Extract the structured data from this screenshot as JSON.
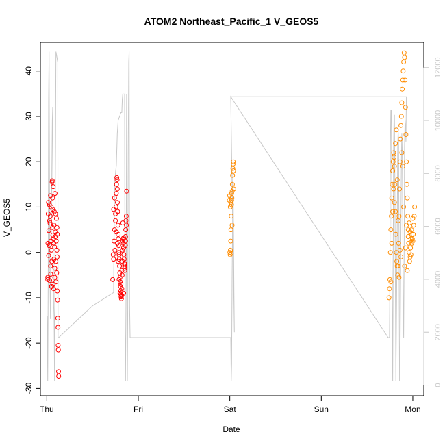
{
  "chart_data": {
    "type": "scatter",
    "title": "ATOM2 Northeast_Pacific_1 V_GEOS5",
    "xlabel": "Date",
    "ylabel": "V_GEOS5",
    "x_ticks": [
      "Thu",
      "Fri",
      "Sat",
      "Sun",
      "Mon"
    ],
    "x_range_days": [
      0,
      4
    ],
    "ylim": [
      -30,
      45
    ],
    "y_ticks": [
      -30,
      -20,
      -10,
      0,
      10,
      20,
      30,
      40
    ],
    "y2_ticks": [
      0,
      2000,
      4000,
      6000,
      8000,
      10000,
      12000
    ],
    "y2lim": [
      0,
      12600
    ],
    "grid": false,
    "colors": {
      "series_red": "#ff0000",
      "series_orange": "#ff8c00",
      "altitude_line": "#c8c8c8",
      "axis": "#000000"
    },
    "series": [
      {
        "color": "red",
        "points": [
          [
            0.01,
            -6
          ],
          [
            0.01,
            -5.5
          ],
          [
            0.012,
            2
          ],
          [
            0.015,
            8.5
          ],
          [
            0.018,
            11
          ],
          [
            0.02,
            -0.7
          ],
          [
            0.022,
            4.8
          ],
          [
            0.025,
            1.5
          ],
          [
            0.028,
            10.5
          ],
          [
            0.03,
            7
          ],
          [
            0.032,
            -6.2
          ],
          [
            0.035,
            6.5
          ],
          [
            0.038,
            8
          ],
          [
            0.04,
            12.5
          ],
          [
            0.042,
            -4.8
          ],
          [
            0.045,
            2.5
          ],
          [
            0.048,
            10
          ],
          [
            0.05,
            0.5
          ],
          [
            0.052,
            -7.5
          ],
          [
            0.055,
            -2
          ],
          [
            0.058,
            15.5
          ],
          [
            0.06,
            15.8
          ],
          [
            0.062,
            5.5
          ],
          [
            0.065,
            9.5
          ],
          [
            0.068,
            -7
          ],
          [
            0.07,
            14.5
          ],
          [
            0.072,
            3
          ],
          [
            0.075,
            -8
          ],
          [
            0.078,
            -1.5
          ],
          [
            0.08,
            6
          ],
          [
            0.082,
            9
          ],
          [
            0.085,
            1.2
          ],
          [
            0.088,
            -3.5
          ],
          [
            0.09,
            13
          ],
          [
            0.092,
            3.5
          ],
          [
            0.095,
            8.5
          ],
          [
            0.1,
            -6.5
          ],
          [
            0.102,
            2.5
          ],
          [
            0.105,
            7.5
          ],
          [
            0.108,
            -4.5
          ],
          [
            0.11,
            0.5
          ],
          [
            0.113,
            -1
          ],
          [
            0.115,
            -8.5
          ],
          [
            0.118,
            -10.5
          ],
          [
            0.12,
            -14.5
          ],
          [
            0.122,
            -16.5
          ],
          [
            0.124,
            -20.5
          ],
          [
            0.126,
            -21.5
          ],
          [
            0.128,
            -26.3
          ],
          [
            0.13,
            -27.3
          ],
          [
            0.115,
            4
          ],
          [
            0.112,
            5.5
          ],
          [
            0.098,
            -2
          ],
          [
            0.093,
            4.5
          ],
          [
            0.087,
            -5.5
          ],
          [
            0.076,
            2
          ],
          [
            0.066,
            3.8
          ],
          [
            0.063,
            12
          ],
          [
            0.041,
            -3
          ],
          [
            0.033,
            1.8
          ],
          [
            0.72,
            -6
          ],
          [
            0.725,
            -0.5
          ],
          [
            0.73,
            -1.5
          ],
          [
            0.735,
            2.5
          ],
          [
            0.74,
            5
          ],
          [
            0.745,
            0.5
          ],
          [
            0.75,
            8.5
          ],
          [
            0.755,
            10
          ],
          [
            0.76,
            13
          ],
          [
            0.762,
            15
          ],
          [
            0.765,
            16.5
          ],
          [
            0.768,
            16
          ],
          [
            0.77,
            14
          ],
          [
            0.772,
            11
          ],
          [
            0.775,
            9
          ],
          [
            0.778,
            6
          ],
          [
            0.78,
            4
          ],
          [
            0.782,
            3
          ],
          [
            0.785,
            1.5
          ],
          [
            0.788,
            0
          ],
          [
            0.79,
            -0.5
          ],
          [
            0.792,
            -1.5
          ],
          [
            0.795,
            -3
          ],
          [
            0.798,
            -4.5
          ],
          [
            0.8,
            -5.5
          ],
          [
            0.803,
            -6.5
          ],
          [
            0.806,
            -7.5
          ],
          [
            0.808,
            -8.5
          ],
          [
            0.81,
            -9.2
          ],
          [
            0.812,
            -9.8
          ],
          [
            0.815,
            -10.2
          ],
          [
            0.818,
            -9.5
          ],
          [
            0.82,
            -8
          ],
          [
            0.823,
            -5
          ],
          [
            0.825,
            -2
          ],
          [
            0.828,
            0.5
          ],
          [
            0.83,
            2.5
          ],
          [
            0.833,
            3
          ],
          [
            0.835,
            2
          ],
          [
            0.838,
            1
          ],
          [
            0.84,
            3.2
          ],
          [
            0.842,
            -0.5
          ],
          [
            0.845,
            -1.5
          ],
          [
            0.848,
            -2.5
          ],
          [
            0.85,
            -3.5
          ],
          [
            0.852,
            -4
          ],
          [
            0.855,
            -2.5
          ],
          [
            0.858,
            1.5
          ],
          [
            0.86,
            3.5
          ],
          [
            0.862,
            5
          ],
          [
            0.865,
            7
          ],
          [
            0.868,
            8
          ],
          [
            0.87,
            6
          ],
          [
            0.872,
            13.5
          ],
          [
            0.73,
            9.5
          ],
          [
            0.74,
            12
          ],
          [
            0.75,
            7
          ],
          [
            0.76,
            4.5
          ],
          [
            0.77,
            2
          ],
          [
            0.78,
            -2
          ],
          [
            0.79,
            -6
          ],
          [
            0.8,
            -9
          ],
          [
            0.81,
            -7
          ],
          [
            0.82,
            -4
          ],
          [
            0.83,
            6.5
          ],
          [
            0.84,
            -9
          ],
          [
            0.85,
            -3
          ],
          [
            0.86,
            2.5
          ]
        ]
      },
      {
        "color": "orange",
        "points": [
          [
            2.0,
            0
          ],
          [
            2.003,
            -0.5
          ],
          [
            2.006,
            0.5
          ],
          [
            2.01,
            2.5
          ],
          [
            2.012,
            5
          ],
          [
            2.015,
            8
          ],
          [
            2.018,
            10.5
          ],
          [
            2.02,
            11.5
          ],
          [
            2.023,
            12
          ],
          [
            2.026,
            13.5
          ],
          [
            2.028,
            15
          ],
          [
            2.03,
            17
          ],
          [
            2.033,
            18.5
          ],
          [
            2.036,
            19.5
          ],
          [
            2.038,
            20
          ],
          [
            2.04,
            18
          ],
          [
            2.043,
            14
          ],
          [
            2.01,
            11
          ],
          [
            2.02,
            13
          ],
          [
            1.995,
            11.5
          ],
          [
            1.998,
            12.5
          ],
          [
            2.005,
            10
          ],
          [
            2.015,
            -0.2
          ],
          [
            2.025,
            6
          ],
          [
            3.74,
            -10
          ],
          [
            3.745,
            -8
          ],
          [
            3.75,
            -6
          ],
          [
            3.755,
            0
          ],
          [
            3.76,
            5
          ],
          [
            3.765,
            8
          ],
          [
            3.77,
            12
          ],
          [
            3.775,
            15
          ],
          [
            3.78,
            18
          ],
          [
            3.785,
            20
          ],
          [
            3.79,
            22
          ],
          [
            3.795,
            21
          ],
          [
            3.8,
            19
          ],
          [
            3.805,
            15
          ],
          [
            3.81,
            9
          ],
          [
            3.815,
            4
          ],
          [
            3.82,
            0
          ],
          [
            3.825,
            -2
          ],
          [
            3.83,
            -3
          ],
          [
            3.835,
            -5
          ],
          [
            3.84,
            -3
          ],
          [
            3.845,
            2
          ],
          [
            3.85,
            8
          ],
          [
            3.855,
            14
          ],
          [
            3.86,
            20
          ],
          [
            3.865,
            25
          ],
          [
            3.87,
            28
          ],
          [
            3.875,
            30
          ],
          [
            3.88,
            33
          ],
          [
            3.885,
            36
          ],
          [
            3.89,
            38
          ],
          [
            3.895,
            40
          ],
          [
            3.9,
            42
          ],
          [
            3.905,
            44
          ],
          [
            3.91,
            43
          ],
          [
            3.915,
            38
          ],
          [
            3.92,
            32
          ],
          [
            3.925,
            26
          ],
          [
            3.93,
            20
          ],
          [
            3.935,
            15
          ],
          [
            3.94,
            12
          ],
          [
            3.945,
            8
          ],
          [
            3.95,
            5
          ],
          [
            3.955,
            2
          ],
          [
            3.96,
            0
          ],
          [
            3.965,
            -2
          ],
          [
            3.97,
            -1
          ],
          [
            3.975,
            1
          ],
          [
            3.98,
            3
          ],
          [
            3.985,
            5
          ],
          [
            3.99,
            4
          ],
          [
            3.995,
            3
          ],
          [
            4.0,
            2.5
          ],
          [
            4.005,
            4
          ],
          [
            4.01,
            6
          ],
          [
            4.015,
            8
          ],
          [
            4.02,
            10
          ],
          [
            3.76,
            -6.5
          ],
          [
            3.77,
            2
          ],
          [
            3.78,
            9
          ],
          [
            3.79,
            14
          ],
          [
            3.8,
            11
          ],
          [
            3.81,
            24
          ],
          [
            3.82,
            27
          ],
          [
            3.83,
            16
          ],
          [
            3.84,
            7
          ],
          [
            3.85,
            -5.5
          ],
          [
            3.86,
            0.5
          ],
          [
            3.87,
            -1
          ],
          [
            3.88,
            22
          ],
          [
            3.89,
            19
          ],
          [
            3.9,
            10
          ],
          [
            3.91,
            -3
          ],
          [
            3.92,
            1
          ],
          [
            3.93,
            6
          ],
          [
            3.94,
            -4
          ],
          [
            3.95,
            3.5
          ],
          [
            3.96,
            6.5
          ],
          [
            3.97,
            4.5
          ],
          [
            3.98,
            -0.5
          ],
          [
            3.99,
            2
          ],
          [
            4.0,
            7.5
          ]
        ]
      }
    ],
    "altitude_line": [
      [
        0.0,
        2600
      ],
      [
        0.005,
        2600
      ],
      [
        0.01,
        150
      ],
      [
        0.015,
        4000
      ],
      [
        0.02,
        10800
      ],
      [
        0.025,
        12600
      ],
      [
        0.03,
        6500
      ],
      [
        0.035,
        4000
      ],
      [
        0.04,
        2500
      ],
      [
        0.045,
        5000
      ],
      [
        0.05,
        6000
      ],
      [
        0.055,
        8000
      ],
      [
        0.06,
        10000
      ],
      [
        0.065,
        10500
      ],
      [
        0.07,
        5000
      ],
      [
        0.075,
        3000
      ],
      [
        0.08,
        2600
      ],
      [
        0.085,
        150
      ],
      [
        0.09,
        6000
      ],
      [
        0.095,
        9000
      ],
      [
        0.1,
        12600
      ],
      [
        0.105,
        12500
      ],
      [
        0.11,
        12400
      ],
      [
        0.115,
        12300
      ],
      [
        0.12,
        12200
      ],
      [
        0.123,
        1800
      ],
      [
        0.13,
        1800
      ],
      [
        0.5,
        3000
      ],
      [
        0.73,
        3500
      ],
      [
        0.74,
        7500
      ],
      [
        0.75,
        8000
      ],
      [
        0.76,
        8300
      ],
      [
        0.77,
        9500
      ],
      [
        0.78,
        10000
      ],
      [
        0.79,
        10100
      ],
      [
        0.8,
        10200
      ],
      [
        0.81,
        10300
      ],
      [
        0.82,
        10300
      ],
      [
        0.825,
        10800
      ],
      [
        0.83,
        11000
      ],
      [
        0.84,
        11000
      ],
      [
        0.85,
        11000
      ],
      [
        0.855,
        2000
      ],
      [
        0.86,
        150
      ],
      [
        0.865,
        3000
      ],
      [
        0.87,
        8000
      ],
      [
        0.872,
        11000
      ],
      [
        0.875,
        4000
      ],
      [
        0.88,
        150
      ],
      [
        0.885,
        3000
      ],
      [
        0.89,
        9000
      ],
      [
        0.895,
        12200
      ],
      [
        0.9,
        12600
      ],
      [
        0.905,
        3000
      ],
      [
        0.91,
        1800
      ],
      [
        1.0,
        1800
      ],
      [
        2.0,
        1800
      ],
      [
        2.01,
        1800
      ],
      [
        2.015,
        150
      ],
      [
        2.02,
        800
      ],
      [
        2.025,
        4000
      ],
      [
        2.03,
        6000
      ],
      [
        2.035,
        8000
      ],
      [
        2.04,
        6000
      ],
      [
        2.045,
        3500
      ],
      [
        2.05,
        2000
      ],
      [
        2.01,
        10900
      ],
      [
        3.73,
        1800
      ],
      [
        3.745,
        1800
      ],
      [
        3.75,
        4000
      ],
      [
        3.755,
        9000
      ],
      [
        3.76,
        10400
      ],
      [
        3.765,
        10400
      ],
      [
        3.77,
        7000
      ],
      [
        3.775,
        3000
      ],
      [
        3.78,
        150
      ],
      [
        3.785,
        4000
      ],
      [
        3.79,
        9000
      ],
      [
        3.795,
        10200
      ],
      [
        3.8,
        10200
      ],
      [
        3.805,
        7000
      ],
      [
        3.81,
        3500
      ],
      [
        3.815,
        150
      ],
      [
        3.82,
        2000
      ],
      [
        3.83,
        6000
      ],
      [
        3.835,
        9000
      ],
      [
        3.84,
        9600
      ],
      [
        3.845,
        9200
      ],
      [
        3.85,
        5000
      ],
      [
        3.855,
        150
      ],
      [
        3.86,
        1000
      ],
      [
        3.865,
        3000
      ],
      [
        3.87,
        6000
      ],
      [
        3.875,
        8500
      ],
      [
        3.88,
        9500
      ],
      [
        3.885,
        8800
      ],
      [
        3.89,
        6000
      ],
      [
        3.895,
        3000
      ],
      [
        3.9,
        1800
      ],
      [
        3.905,
        5000
      ],
      [
        3.91,
        9000
      ],
      [
        3.915,
        10000
      ],
      [
        3.92,
        9800
      ],
      [
        3.925,
        9200
      ],
      [
        3.93,
        10900
      ],
      [
        2.01,
        10900
      ]
    ]
  }
}
